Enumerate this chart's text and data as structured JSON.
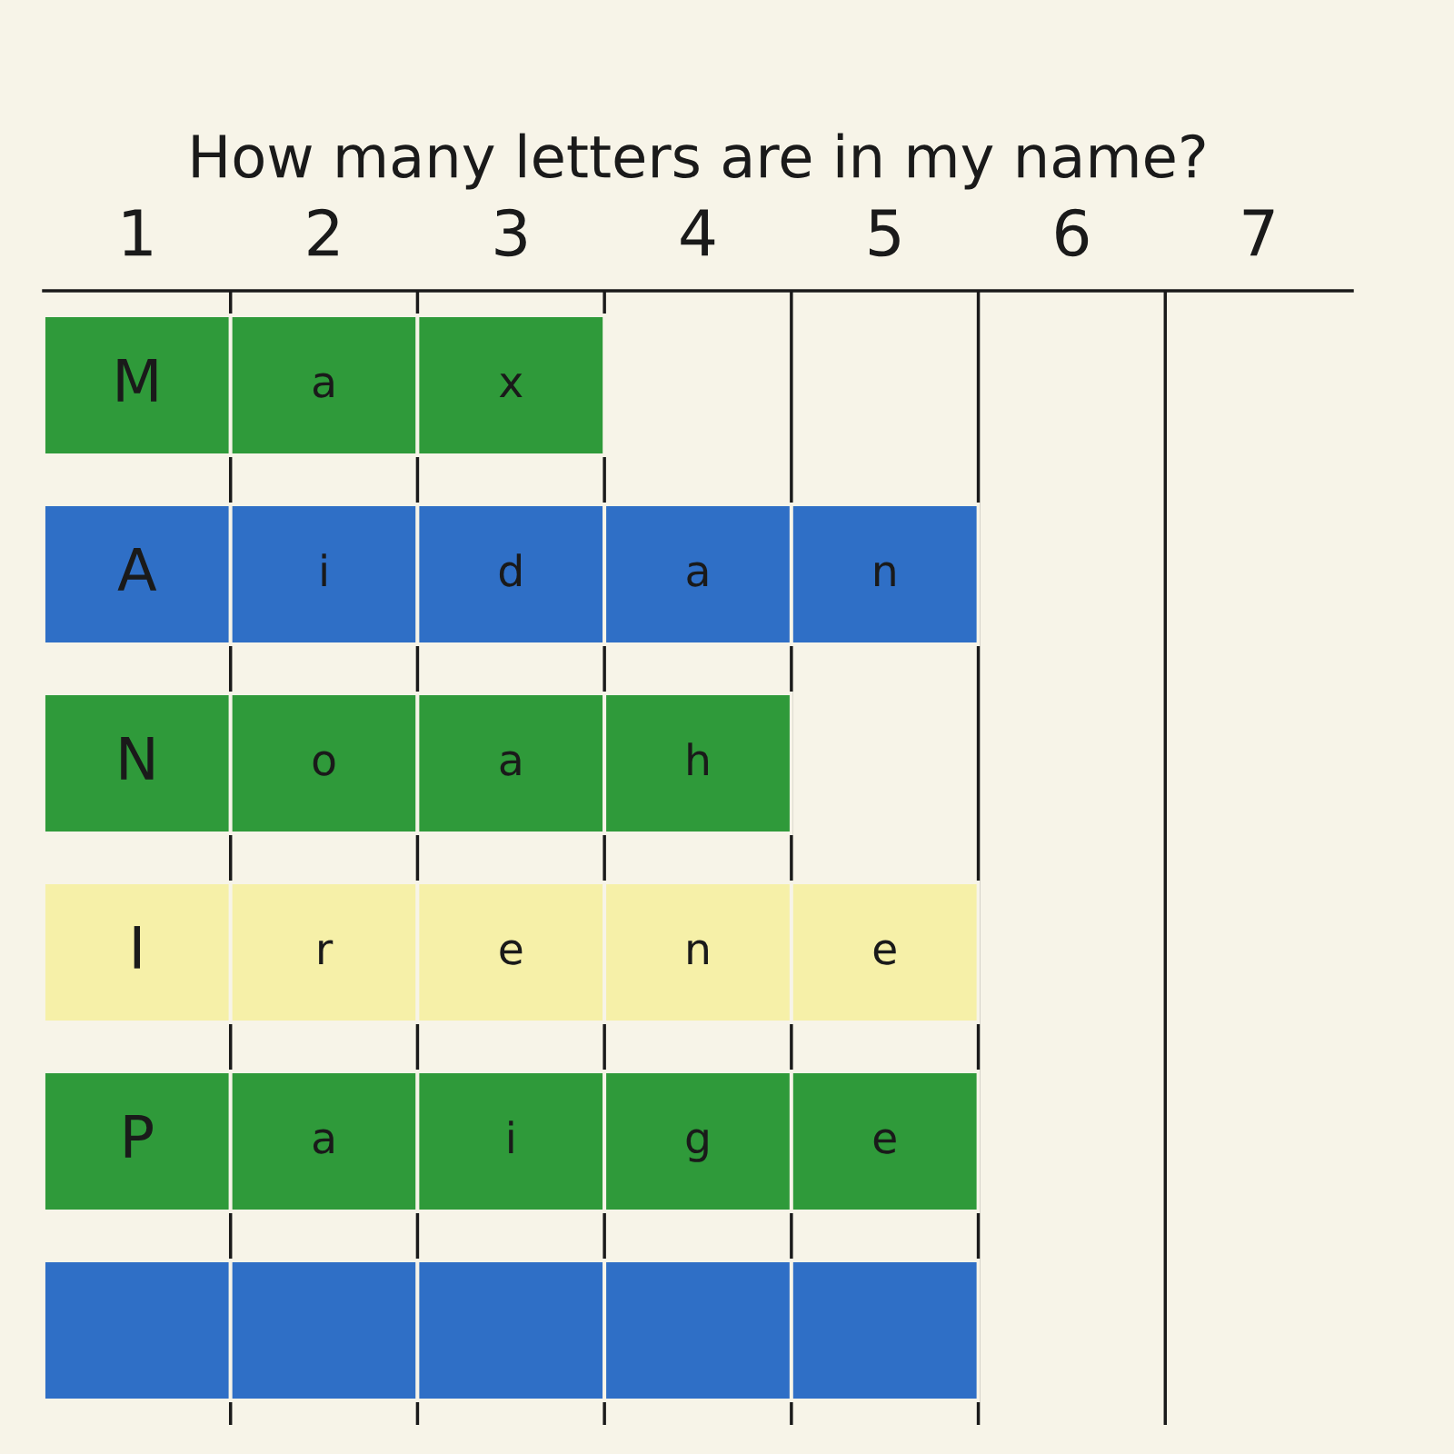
{
  "chart_data": {
    "type": "bar",
    "orientation": "horizontal",
    "stacked": true,
    "title": "How many letters are in my name?",
    "categories": [
      null,
      null,
      null,
      null,
      null,
      null
    ],
    "series": [
      {
        "colors": [
          "#2f9a3a",
          "#2f6fc6",
          "#2f9a3a",
          "#f6f0a8",
          "#2f9a3a",
          "#2f6fc6"
        ],
        "values": [
          1,
          1,
          1,
          1,
          1,
          1
        ],
        "value_labels": [
          "M",
          "A",
          "N",
          "I",
          "P",
          null
        ]
      },
      {
        "colors": [
          "#2f9a3a",
          "#2f6fc6",
          "#2f9a3a",
          "#f6f0a8",
          "#2f9a3a",
          "#2f6fc6"
        ],
        "values": [
          1,
          1,
          1,
          1,
          1,
          1
        ],
        "value_labels": [
          "a",
          "i",
          "o",
          "r",
          "a",
          null
        ]
      },
      {
        "colors": [
          "#2f9a3a",
          "#2f6fc6",
          "#2f9a3a",
          "#f6f0a8",
          "#2f9a3a",
          "#2f6fc6"
        ],
        "values": [
          1,
          1,
          1,
          1,
          1,
          1
        ],
        "value_labels": [
          "x",
          "d",
          "a",
          "e",
          "i",
          null
        ]
      },
      {
        "colors": [
          null,
          "#2f6fc6",
          "#2f9a3a",
          "#f6f0a8",
          "#2f9a3a",
          "#2f6fc6"
        ],
        "values": [
          null,
          1,
          1,
          1,
          1,
          1
        ],
        "value_labels": [
          null,
          "a",
          "h",
          "n",
          "g",
          null
        ]
      },
      {
        "colors": [
          null,
          "#2f6fc6",
          null,
          "#f6f0a8",
          "#2f9a3a",
          "#2f6fc6"
        ],
        "values": [
          null,
          1,
          null,
          1,
          1,
          1
        ],
        "value_labels": [
          null,
          "n",
          null,
          "e",
          "e",
          null
        ]
      }
    ],
    "xlim": [
      0,
      7
    ],
    "xticks": [
      {
        "value": 0.5,
        "label": "1"
      },
      {
        "value": 1.5,
        "label": "2"
      },
      {
        "value": 2.5,
        "label": "3"
      },
      {
        "value": 3.5,
        "label": "4"
      },
      {
        "value": 4.5,
        "label": "5"
      },
      {
        "value": 5.5,
        "label": "6"
      },
      {
        "value": 6.5,
        "label": "7"
      }
    ],
    "ref_lines": [
      {
        "axis": "x",
        "value": 1,
        "color": "#1a1a1a"
      },
      {
        "axis": "x",
        "value": 2,
        "color": "#1a1a1a"
      },
      {
        "axis": "x",
        "value": 3,
        "color": "#1a1a1a"
      },
      {
        "axis": "x",
        "value": 4,
        "color": "#1a1a1a"
      },
      {
        "axis": "x",
        "value": 5,
        "color": "#1a1a1a"
      },
      {
        "axis": "x",
        "value": 6,
        "color": "#1a1a1a"
      }
    ],
    "tick_labels": "x"
  }
}
